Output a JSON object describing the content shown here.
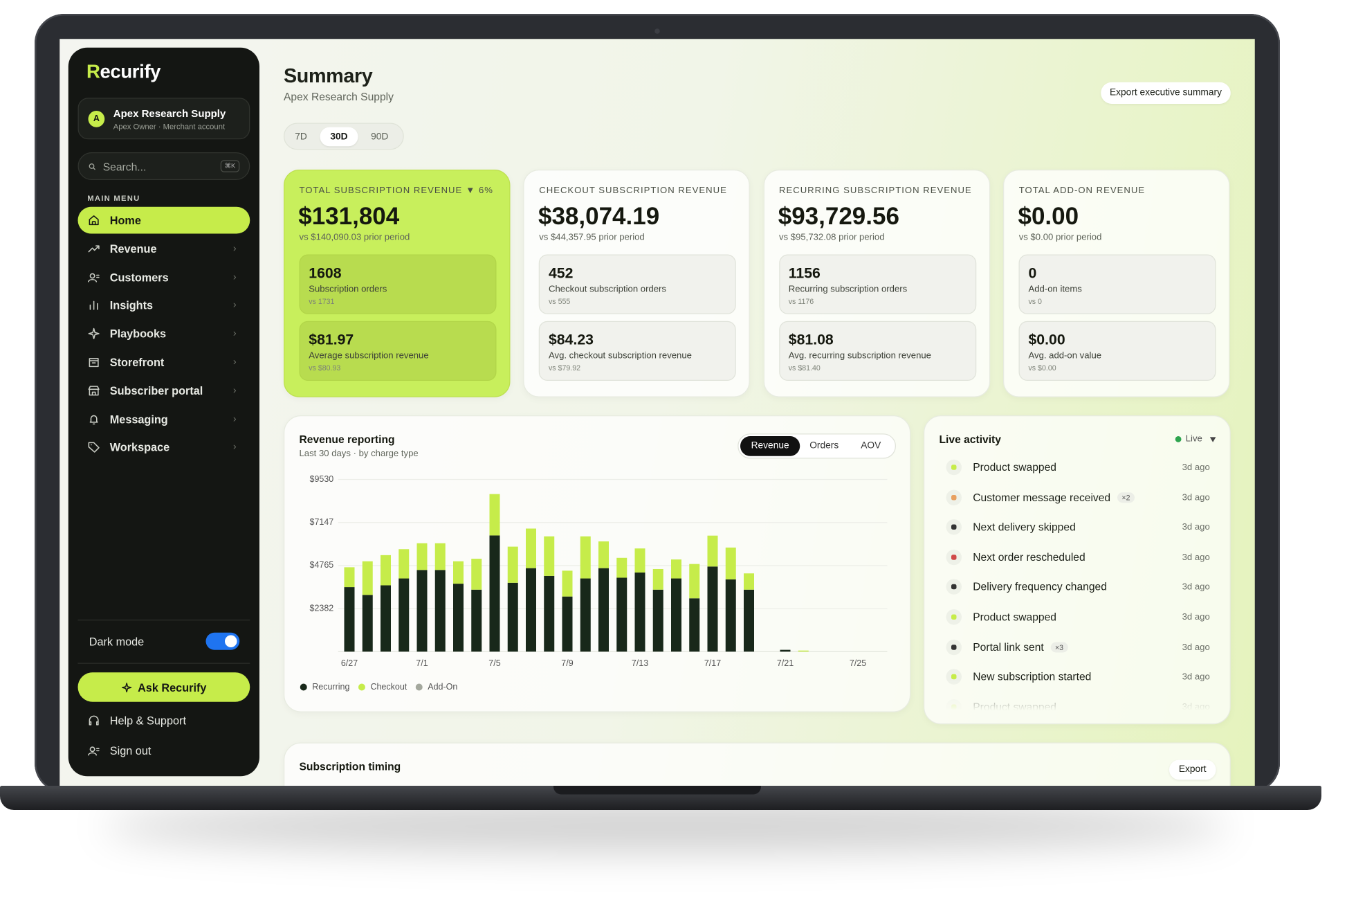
{
  "brand": "Recurify",
  "account": {
    "initial": "A",
    "name": "Apex Research Supply",
    "detail": "Apex Owner · Merchant account"
  },
  "search": {
    "placeholder": "Search...",
    "shortcut": "⌘K"
  },
  "menu": {
    "heading": "MAIN MENU",
    "items": [
      "Home",
      "Revenue",
      "Customers",
      "Insights",
      "Playbooks",
      "Storefront",
      "Subscriber portal",
      "Messaging",
      "Workspace"
    ]
  },
  "dark_mode": "Dark mode",
  "ask_button": "Ask Recurify",
  "footer_links": [
    "Help & Support",
    "Sign out"
  ],
  "header": {
    "title": "Summary",
    "subtitle": "Apex Research Supply",
    "export": "Export executive summary"
  },
  "periods": [
    "7D",
    "30D",
    "90D"
  ],
  "kpis": [
    {
      "label": "TOTAL SUBSCRIPTION REVENUE",
      "change": "▼ 6%",
      "value": "$131,804",
      "prior": "vs $140,090.03 prior period",
      "stats": [
        {
          "value": "1608",
          "label": "Subscription orders",
          "prior": "vs 1731"
        },
        {
          "value": "$81.97",
          "label": "Average subscription revenue",
          "prior": "vs $80.93"
        }
      ]
    },
    {
      "label": "CHECKOUT SUBSCRIPTION REVENUE",
      "value": "$38,074.19",
      "prior": "vs $44,357.95 prior period",
      "stats": [
        {
          "value": "452",
          "label": "Checkout subscription orders",
          "prior": "vs 555"
        },
        {
          "value": "$84.23",
          "label": "Avg. checkout subscription revenue",
          "prior": "vs $79.92"
        }
      ]
    },
    {
      "label": "RECURRING SUBSCRIPTION REVENUE",
      "value": "$93,729.56",
      "prior": "vs $95,732.08 prior period",
      "stats": [
        {
          "value": "1156",
          "label": "Recurring subscription orders",
          "prior": "vs 1176"
        },
        {
          "value": "$81.08",
          "label": "Avg. recurring subscription revenue",
          "prior": "vs $81.40"
        }
      ]
    },
    {
      "label": "TOTAL ADD-ON REVENUE",
      "value": "$0.00",
      "prior": "vs $0.00 prior period",
      "stats": [
        {
          "value": "0",
          "label": "Add-on items",
          "prior": "vs 0"
        },
        {
          "value": "$0.00",
          "label": "Avg. add-on value",
          "prior": "vs $0.00"
        }
      ]
    }
  ],
  "revenue_tabs": [
    "Revenue",
    "Orders",
    "AOV"
  ],
  "chart_data": {
    "type": "stacked_bar",
    "title": "Revenue reporting",
    "subtitle": "Last 30 days · by charge type",
    "categories": [
      "6/27",
      null,
      null,
      null,
      "7/1",
      null,
      null,
      null,
      "7/5",
      null,
      null,
      null,
      "7/9",
      null,
      null,
      null,
      "7/13",
      null,
      null,
      null,
      "7/17",
      null,
      null,
      null,
      "7/21",
      null,
      null,
      null,
      "7/25",
      null
    ],
    "series": [
      {
        "name": "Recurring",
        "color": "#18281a",
        "values": [
          3570,
          3140,
          3670,
          4050,
          4520,
          4520,
          3760,
          3430,
          6430,
          3810,
          4620,
          4190,
          3050,
          4050,
          4620,
          4090,
          4380,
          3430,
          4050,
          2950,
          4710,
          4000,
          3430,
          0,
          100,
          0,
          0,
          0,
          0,
          0
        ]
      },
      {
        "name": "Checkout",
        "color": "#c6ec4a",
        "values": [
          1100,
          1860,
          1670,
          1620,
          1480,
          1480,
          1240,
          1710,
          2290,
          2000,
          2190,
          2190,
          1430,
          2330,
          1480,
          1100,
          1330,
          1140,
          1050,
          1900,
          1710,
          1760,
          900,
          0,
          0,
          60,
          0,
          0,
          0,
          0
        ]
      },
      {
        "name": "Add-On",
        "color": "#a4a89d",
        "values": [
          0,
          0,
          0,
          0,
          0,
          0,
          0,
          0,
          0,
          0,
          0,
          0,
          0,
          0,
          0,
          0,
          0,
          0,
          0,
          0,
          0,
          0,
          0,
          0,
          0,
          0,
          0,
          0,
          0,
          0
        ]
      }
    ],
    "ylim": [
      0,
      9530
    ],
    "yticks": [
      {
        "value": 2382,
        "label": "$2382"
      },
      {
        "value": 4765,
        "label": "$4765"
      },
      {
        "value": 7147,
        "label": "$7147"
      },
      {
        "value": 9530,
        "label": "$9530"
      }
    ],
    "grid": true,
    "legend": "bottom-left"
  },
  "live_activity": {
    "title": "Live activity",
    "status": "Live",
    "events": [
      {
        "text": "Product swapped",
        "time": "3d ago"
      },
      {
        "text": "Customer message received",
        "badge": "×2",
        "time": "3d ago"
      },
      {
        "text": "Next delivery skipped",
        "time": "3d ago"
      },
      {
        "text": "Next order rescheduled",
        "time": "3d ago"
      },
      {
        "text": "Delivery frequency changed",
        "time": "3d ago"
      },
      {
        "text": "Product swapped",
        "time": "3d ago"
      },
      {
        "text": "Portal link sent",
        "badge": "×3",
        "time": "3d ago"
      },
      {
        "text": "New subscription started",
        "time": "3d ago"
      },
      {
        "text": "Product swapped",
        "time": "3d ago"
      }
    ]
  },
  "timing": {
    "title": "Subscription timing",
    "export": "Export"
  }
}
